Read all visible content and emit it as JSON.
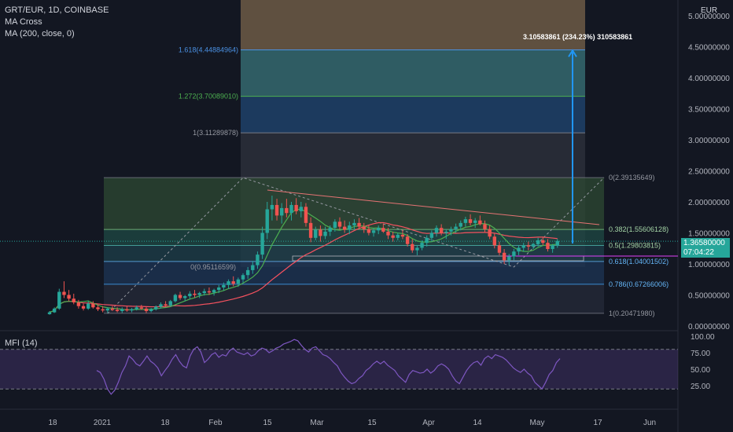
{
  "header": {
    "symbol_line": "GRT/EUR, 1D, COINBASE",
    "indicator_1": "MA Cross",
    "indicator_2": "MA (200, close, 0)",
    "currency": "EUR"
  },
  "price_badge": {
    "price": "1.36580000",
    "countdown": "07:04:22"
  },
  "mfi": {
    "title": "MFI (14)",
    "ticks": [
      "100.00",
      "75.00",
      "50.00",
      "25.00"
    ],
    "upper_band": 80,
    "lower_band": 20,
    "values": [
      48,
      45,
      35,
      20,
      12,
      18,
      30,
      45,
      55,
      70,
      65,
      58,
      55,
      62,
      70,
      62,
      58,
      52,
      40,
      48,
      55,
      65,
      72,
      62,
      55,
      52,
      70,
      80,
      84,
      76,
      60,
      65,
      72,
      75,
      68,
      72,
      70,
      78,
      82,
      76,
      74,
      72,
      75,
      70,
      72,
      78,
      82,
      80,
      75,
      78,
      82,
      84,
      88,
      90,
      92,
      95,
      93,
      86,
      80,
      76,
      82,
      84,
      78,
      72,
      70,
      66,
      60,
      55,
      45,
      38,
      32,
      28,
      30,
      36,
      40,
      48,
      52,
      58,
      62,
      58,
      62,
      56,
      52,
      48,
      40,
      35,
      30,
      42,
      48,
      46,
      44,
      45,
      50,
      44,
      48,
      55,
      58,
      55,
      50,
      40,
      32,
      28,
      38,
      48,
      55,
      60,
      62,
      56,
      66,
      70,
      66,
      72,
      70,
      68,
      64,
      58,
      52,
      48,
      45,
      50,
      44,
      40,
      30,
      25,
      20,
      30,
      42,
      48,
      60,
      66
    ]
  },
  "fib_retracement": [
    {
      "label": "0(2.39135649)",
      "value": 2.39135649
    },
    {
      "label": "0.382(1.55606128)",
      "value": 1.55606128
    },
    {
      "label": "0.5(1.29803815)",
      "value": 1.29803815
    },
    {
      "label": "0.618(1.04001502)",
      "value": 1.04001502
    },
    {
      "label": "0.786(0.67266006)",
      "value": 0.67266006
    },
    {
      "label": "1(0.20471980)",
      "value": 0.2047198
    }
  ],
  "fib_extension": [
    {
      "label": "0(0.95116599)",
      "value": 0.95116599
    },
    {
      "label": "1(3.11289878)",
      "value": 3.11289878
    },
    {
      "label": "1.272(3.70089010)",
      "value": 3.7008901
    },
    {
      "label": "1.618(4.44884964)",
      "value": 4.44884964
    }
  ],
  "measure_label": "3.10583861 (234.23%) 310583861",
  "colors": {
    "up": "#26a69a",
    "down": "#ef5350",
    "ma_fast": "#4caf50",
    "ma_slow": "#f7525f",
    "accent": "#2962ff",
    "mfi": "#7e57c2"
  },
  "chart_data": {
    "type": "candlestick",
    "y_axis": {
      "currency": "EUR",
      "ticks": [
        "5.00000000",
        "4.50000000",
        "4.00000000",
        "3.50000000",
        "3.00000000",
        "2.50000000",
        "2.00000000",
        "1.50000000",
        "1.00000000",
        "0.50000000",
        "0.00000000"
      ],
      "range": [
        0,
        5.2
      ]
    },
    "x_axis": {
      "ticks": [
        "18",
        "2021",
        "18",
        "Feb",
        "15",
        "Mar",
        "15",
        "Apr",
        "14",
        "May",
        "17",
        "Jun"
      ]
    },
    "series": [
      {
        "name": "GRT/EUR",
        "ohlc": [
          [
            0.19,
            0.24,
            0.18,
            0.22
          ],
          [
            0.22,
            0.3,
            0.21,
            0.28
          ],
          [
            0.28,
            0.6,
            0.26,
            0.55
          ],
          [
            0.55,
            0.72,
            0.45,
            0.5
          ],
          [
            0.5,
            0.58,
            0.4,
            0.44
          ],
          [
            0.44,
            0.52,
            0.35,
            0.38
          ],
          [
            0.38,
            0.42,
            0.28,
            0.32
          ],
          [
            0.32,
            0.36,
            0.25,
            0.28
          ],
          [
            0.28,
            0.4,
            0.26,
            0.36
          ],
          [
            0.36,
            0.4,
            0.28,
            0.3
          ],
          [
            0.3,
            0.34,
            0.24,
            0.27
          ],
          [
            0.27,
            0.32,
            0.22,
            0.25
          ],
          [
            0.25,
            0.3,
            0.21,
            0.28
          ],
          [
            0.28,
            0.32,
            0.24,
            0.26
          ],
          [
            0.26,
            0.3,
            0.22,
            0.24
          ],
          [
            0.24,
            0.3,
            0.21,
            0.27
          ],
          [
            0.27,
            0.32,
            0.23,
            0.25
          ],
          [
            0.25,
            0.29,
            0.22,
            0.27
          ],
          [
            0.27,
            0.33,
            0.25,
            0.3
          ],
          [
            0.3,
            0.34,
            0.26,
            0.28
          ],
          [
            0.28,
            0.31,
            0.21,
            0.24
          ],
          [
            0.24,
            0.29,
            0.22,
            0.27
          ],
          [
            0.27,
            0.33,
            0.25,
            0.31
          ],
          [
            0.31,
            0.38,
            0.28,
            0.35
          ],
          [
            0.35,
            0.4,
            0.3,
            0.33
          ],
          [
            0.33,
            0.42,
            0.31,
            0.4
          ],
          [
            0.4,
            0.52,
            0.38,
            0.5
          ],
          [
            0.5,
            0.55,
            0.42,
            0.45
          ],
          [
            0.45,
            0.5,
            0.4,
            0.48
          ],
          [
            0.48,
            0.56,
            0.44,
            0.52
          ],
          [
            0.52,
            0.58,
            0.46,
            0.5
          ],
          [
            0.5,
            0.55,
            0.45,
            0.53
          ],
          [
            0.53,
            0.6,
            0.49,
            0.56
          ],
          [
            0.56,
            0.62,
            0.5,
            0.54
          ],
          [
            0.54,
            0.6,
            0.49,
            0.58
          ],
          [
            0.58,
            0.66,
            0.53,
            0.62
          ],
          [
            0.62,
            0.7,
            0.57,
            0.66
          ],
          [
            0.66,
            0.75,
            0.6,
            0.72
          ],
          [
            0.72,
            0.8,
            0.64,
            0.68
          ],
          [
            0.68,
            0.78,
            0.63,
            0.75
          ],
          [
            0.75,
            0.85,
            0.7,
            0.82
          ],
          [
            0.82,
            0.95,
            0.76,
            0.9
          ],
          [
            0.9,
            1.05,
            0.84,
            0.98
          ],
          [
            0.98,
            1.2,
            0.92,
            1.15
          ],
          [
            1.15,
            1.6,
            1.08,
            1.5
          ],
          [
            1.5,
            2.0,
            1.4,
            1.88
          ],
          [
            1.88,
            2.1,
            1.7,
            1.95
          ],
          [
            1.95,
            2.05,
            1.7,
            1.78
          ],
          [
            1.78,
            1.98,
            1.65,
            1.9
          ],
          [
            1.9,
            2.05,
            1.75,
            1.82
          ],
          [
            1.82,
            2.0,
            1.7,
            1.95
          ],
          [
            1.95,
            2.06,
            1.8,
            1.85
          ],
          [
            1.85,
            2.0,
            1.75,
            1.92
          ],
          [
            1.92,
            1.98,
            1.6,
            1.66
          ],
          [
            1.66,
            1.75,
            1.35,
            1.42
          ],
          [
            1.42,
            1.6,
            1.38,
            1.55
          ],
          [
            1.55,
            1.62,
            1.36,
            1.45
          ],
          [
            1.45,
            1.6,
            1.4,
            1.52
          ],
          [
            1.52,
            1.62,
            1.45,
            1.58
          ],
          [
            1.58,
            1.72,
            1.52,
            1.68
          ],
          [
            1.68,
            1.75,
            1.55,
            1.6
          ],
          [
            1.6,
            1.7,
            1.5,
            1.55
          ],
          [
            1.55,
            1.68,
            1.48,
            1.62
          ],
          [
            1.62,
            1.72,
            1.55,
            1.66
          ],
          [
            1.66,
            1.74,
            1.56,
            1.6
          ],
          [
            1.6,
            1.66,
            1.5,
            1.56
          ],
          [
            1.56,
            1.62,
            1.46,
            1.5
          ],
          [
            1.5,
            1.58,
            1.44,
            1.54
          ],
          [
            1.54,
            1.62,
            1.48,
            1.58
          ],
          [
            1.58,
            1.65,
            1.5,
            1.52
          ],
          [
            1.52,
            1.58,
            1.4,
            1.46
          ],
          [
            1.46,
            1.52,
            1.36,
            1.42
          ],
          [
            1.42,
            1.5,
            1.38,
            1.47
          ],
          [
            1.47,
            1.55,
            1.4,
            1.44
          ],
          [
            1.44,
            1.48,
            1.28,
            1.32
          ],
          [
            1.32,
            1.4,
            1.18,
            1.22
          ],
          [
            1.22,
            1.3,
            1.14,
            1.26
          ],
          [
            1.26,
            1.38,
            1.22,
            1.34
          ],
          [
            1.34,
            1.46,
            1.28,
            1.42
          ],
          [
            1.42,
            1.54,
            1.36,
            1.5
          ],
          [
            1.5,
            1.62,
            1.44,
            1.58
          ],
          [
            1.58,
            1.64,
            1.46,
            1.5
          ],
          [
            1.5,
            1.56,
            1.4,
            1.52
          ],
          [
            1.52,
            1.6,
            1.46,
            1.56
          ],
          [
            1.56,
            1.65,
            1.5,
            1.6
          ],
          [
            1.6,
            1.7,
            1.54,
            1.66
          ],
          [
            1.66,
            1.76,
            1.6,
            1.72
          ],
          [
            1.72,
            1.8,
            1.62,
            1.66
          ],
          [
            1.66,
            1.74,
            1.58,
            1.7
          ],
          [
            1.7,
            1.78,
            1.62,
            1.64
          ],
          [
            1.64,
            1.7,
            1.5,
            1.56
          ],
          [
            1.56,
            1.62,
            1.4,
            1.44
          ],
          [
            1.44,
            1.5,
            1.25,
            1.3
          ],
          [
            1.3,
            1.36,
            1.14,
            1.18
          ],
          [
            1.18,
            1.24,
            1.0,
            1.06
          ],
          [
            1.06,
            1.16,
            0.98,
            1.12
          ],
          [
            1.12,
            1.24,
            1.06,
            1.2
          ],
          [
            1.2,
            1.3,
            1.14,
            1.26
          ],
          [
            1.26,
            1.34,
            1.2,
            1.3
          ],
          [
            1.3,
            1.36,
            1.22,
            1.28
          ],
          [
            1.28,
            1.34,
            1.24,
            1.32
          ],
          [
            1.32,
            1.42,
            1.28,
            1.38
          ],
          [
            1.38,
            1.44,
            1.3,
            1.34
          ],
          [
            1.34,
            1.4,
            1.2,
            1.24
          ],
          [
            1.24,
            1.32,
            1.18,
            1.3
          ],
          [
            1.3,
            1.4,
            1.26,
            1.37
          ]
        ]
      },
      {
        "name": "MA fast",
        "color": "#4caf50"
      },
      {
        "name": "MA slow",
        "color": "#f7525f"
      }
    ]
  }
}
